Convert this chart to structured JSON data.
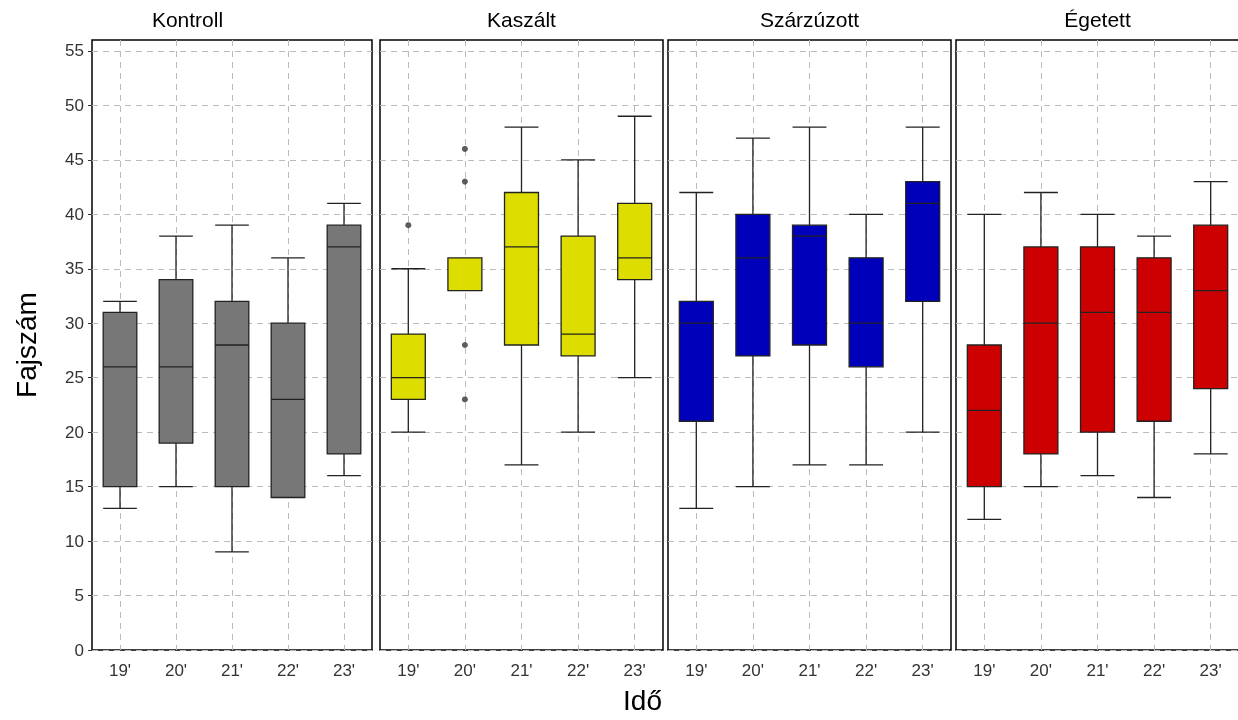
{
  "chart_data": [
    {
      "type": "box",
      "title": "Kontroll",
      "ylabel": "Fajszám",
      "categories": [
        "19'",
        "20'",
        "21'",
        "22'",
        "23'"
      ],
      "color": "#777777",
      "ylim": [
        0,
        56
      ],
      "yticks": [
        0,
        5,
        10,
        15,
        20,
        25,
        30,
        35,
        40,
        45,
        50,
        55
      ],
      "grid": true,
      "boxes": [
        {
          "low": 13,
          "q1": 15,
          "median": 26,
          "q3": 31,
          "high": 32
        },
        {
          "low": 15,
          "q1": 19,
          "median": 26,
          "q3": 34,
          "high": 38
        },
        {
          "low": 9,
          "q1": 15,
          "median": 28,
          "q3": 32,
          "high": 39
        },
        {
          "low": 14,
          "q1": 14,
          "median": 23,
          "q3": 30,
          "high": 36
        },
        {
          "low": 16,
          "q1": 18,
          "median": 37,
          "q3": 39,
          "high": 41
        }
      ]
    },
    {
      "type": "box",
      "title": "Kaszált",
      "xlabel": "Idő",
      "categories": [
        "19'",
        "20'",
        "21'",
        "22'",
        "23'"
      ],
      "color": "#dddd00",
      "ylim": [
        0,
        56
      ],
      "tick_labels": "x",
      "grid": true,
      "boxes": [
        {
          "low": 20,
          "q1": 23,
          "median": 25,
          "q3": 29,
          "high": 35,
          "outliers": [
            39
          ]
        },
        {
          "low": 33,
          "q1": 33,
          "median": 33,
          "q3": 36,
          "high": 36,
          "outliers": [
            23,
            28,
            43,
            46
          ]
        },
        {
          "low": 17,
          "q1": 28,
          "median": 37,
          "q3": 42,
          "high": 48
        },
        {
          "low": 20,
          "q1": 27,
          "median": 29,
          "q3": 38,
          "high": 45
        },
        {
          "low": 25,
          "q1": 34,
          "median": 36,
          "q3": 41,
          "high": 49
        }
      ]
    },
    {
      "type": "box",
      "title": "Szárzúzott",
      "categories": [
        "19'",
        "20'",
        "21'",
        "22'",
        "23'"
      ],
      "color": "#0000bb",
      "ylim": [
        0,
        56
      ],
      "tick_labels": "x",
      "grid": true,
      "boxes": [
        {
          "low": 13,
          "q1": 21,
          "median": 30,
          "q3": 32,
          "high": 42
        },
        {
          "low": 15,
          "q1": 27,
          "median": 36,
          "q3": 40,
          "high": 47
        },
        {
          "low": 17,
          "q1": 28,
          "median": 38,
          "q3": 39,
          "high": 48
        },
        {
          "low": 17,
          "q1": 26,
          "median": 30,
          "q3": 36,
          "high": 40
        },
        {
          "low": 20,
          "q1": 32,
          "median": 41,
          "q3": 43,
          "high": 48
        }
      ]
    },
    {
      "type": "box",
      "title": "Égetett",
      "categories": [
        "19'",
        "20'",
        "21'",
        "22'",
        "23'"
      ],
      "color": "#cc0000",
      "ylim": [
        0,
        56
      ],
      "tick_labels": "x",
      "grid": true,
      "boxes": [
        {
          "low": 12,
          "q1": 15,
          "median": 22,
          "q3": 28,
          "high": 40
        },
        {
          "low": 15,
          "q1": 18,
          "median": 30,
          "q3": 37,
          "high": 42
        },
        {
          "low": 16,
          "q1": 20,
          "median": 31,
          "q3": 37,
          "high": 40
        },
        {
          "low": 14,
          "q1": 21,
          "median": 31,
          "q3": 36,
          "high": 38
        },
        {
          "low": 18,
          "q1": 24,
          "median": 33,
          "q3": 39,
          "high": 43
        }
      ]
    }
  ]
}
